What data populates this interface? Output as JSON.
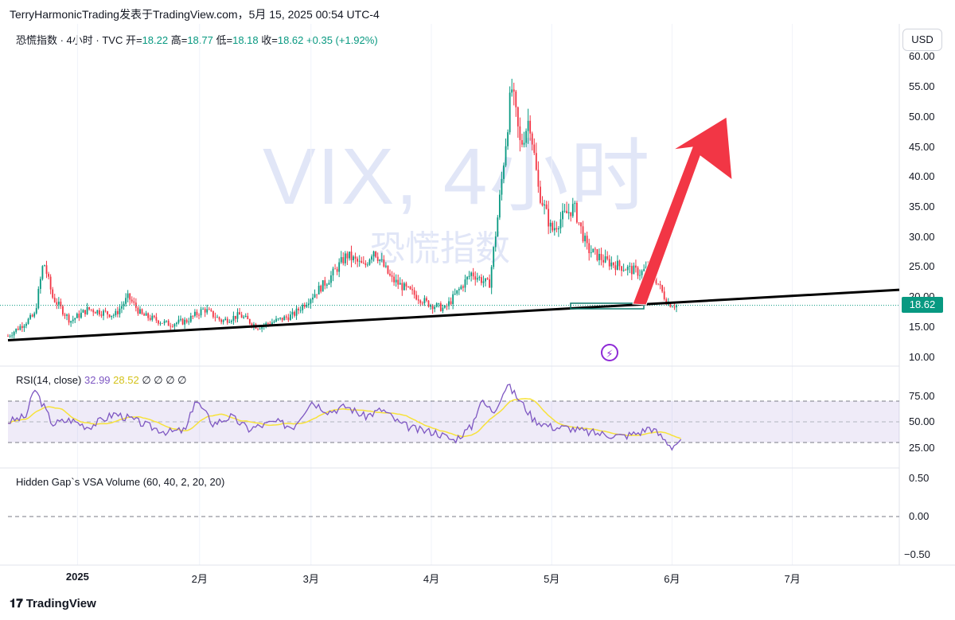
{
  "header": {
    "publisher_line": "TerryHarmonicTrading发表于TradingView.com，5月 15, 2025 00:54 UTC-4"
  },
  "legend": {
    "symbol": "恐慌指数 · 4小时 · TVC",
    "open_label": "开=",
    "open": "18.22",
    "high_label": "高=",
    "high": "18.77",
    "low_label": "低=",
    "low": "18.18",
    "close_label": "收=",
    "close": "18.62",
    "change": "+0.35 (+1.92%)"
  },
  "currency_button": "USD",
  "watermark": {
    "line1": "VIX, 4小时",
    "line2": "恐慌指数"
  },
  "price_axis": {
    "ticks": [
      "60.00",
      "55.00",
      "50.00",
      "45.00",
      "40.00",
      "35.00",
      "30.00",
      "25.00",
      "20.00",
      "15.00",
      "10.00"
    ],
    "last_price": "18.62"
  },
  "rsi": {
    "name": "RSI",
    "params": "(14, close)",
    "value": "32.99",
    "ma_value": "28.52",
    "extra": "∅ ∅ ∅ ∅",
    "ticks": [
      "75.00",
      "50.00",
      "25.00"
    ]
  },
  "vsa": {
    "label": "Hidden Gap`s VSA Volume (60, 40, 2, 20, 20)",
    "ticks": [
      "0.50",
      "0.00",
      "−0.50"
    ]
  },
  "time_axis": {
    "labels": [
      "2025",
      "2月",
      "3月",
      "4月",
      "5月",
      "6月",
      "7月"
    ]
  },
  "footer": {
    "brand": "TradingView"
  },
  "colors": {
    "up": "#089981",
    "down": "#f23645",
    "rsi_line": "#7e57c2",
    "rsi_ma": "#f7e23a",
    "arrow": "#f23645",
    "trendline": "#000000"
  },
  "chart_data": {
    "type": "candlestick",
    "interval": "4小时",
    "y_range": [
      8.5,
      61.5
    ],
    "x_months": [
      "2025",
      "2月",
      "3月",
      "4月",
      "5月",
      "6月",
      "7月"
    ],
    "key_levels": {
      "trendline_start": 12.8,
      "trendline_end": 21.2,
      "last_close": 18.62,
      "peak_high": 60.1
    },
    "approx_close_path": [
      [
        0.0,
        13.5
      ],
      [
        0.03,
        17
      ],
      [
        0.04,
        26
      ],
      [
        0.05,
        20
      ],
      [
        0.07,
        16
      ],
      [
        0.09,
        18
      ],
      [
        0.12,
        17
      ],
      [
        0.135,
        20
      ],
      [
        0.15,
        17
      ],
      [
        0.18,
        15.5
      ],
      [
        0.2,
        16
      ],
      [
        0.22,
        18
      ],
      [
        0.24,
        16
      ],
      [
        0.26,
        17
      ],
      [
        0.28,
        15
      ],
      [
        0.3,
        16
      ],
      [
        0.32,
        17
      ],
      [
        0.34,
        20
      ],
      [
        0.36,
        23
      ],
      [
        0.38,
        27
      ],
      [
        0.4,
        25
      ],
      [
        0.41,
        28
      ],
      [
        0.43,
        23
      ],
      [
        0.45,
        21
      ],
      [
        0.47,
        19
      ],
      [
        0.49,
        18
      ],
      [
        0.5,
        20
      ],
      [
        0.52,
        24
      ],
      [
        0.54,
        22
      ],
      [
        0.55,
        34
      ],
      [
        0.565,
        55
      ],
      [
        0.575,
        45
      ],
      [
        0.585,
        50
      ],
      [
        0.595,
        38
      ],
      [
        0.61,
        31
      ],
      [
        0.62,
        33
      ],
      [
        0.635,
        35
      ],
      [
        0.65,
        28
      ],
      [
        0.67,
        26
      ],
      [
        0.69,
        25
      ],
      [
        0.71,
        24
      ],
      [
        0.72,
        25
      ],
      [
        0.73,
        22
      ],
      [
        0.74,
        19
      ],
      [
        0.75,
        18.62
      ]
    ]
  },
  "rsi_data": {
    "range": [
      10,
      90
    ],
    "upper": 70,
    "middle": 50,
    "lower": 30,
    "approx_path": [
      [
        0.0,
        50
      ],
      [
        0.02,
        55
      ],
      [
        0.03,
        82
      ],
      [
        0.05,
        48
      ],
      [
        0.07,
        52
      ],
      [
        0.09,
        45
      ],
      [
        0.12,
        58
      ],
      [
        0.14,
        52
      ],
      [
        0.16,
        45
      ],
      [
        0.18,
        40
      ],
      [
        0.2,
        42
      ],
      [
        0.21,
        72
      ],
      [
        0.23,
        48
      ],
      [
        0.25,
        55
      ],
      [
        0.27,
        43
      ],
      [
        0.3,
        50
      ],
      [
        0.32,
        45
      ],
      [
        0.34,
        70
      ],
      [
        0.36,
        60
      ],
      [
        0.38,
        65
      ],
      [
        0.4,
        55
      ],
      [
        0.42,
        62
      ],
      [
        0.44,
        48
      ],
      [
        0.46,
        42
      ],
      [
        0.48,
        40
      ],
      [
        0.5,
        32
      ],
      [
        0.52,
        45
      ],
      [
        0.53,
        70
      ],
      [
        0.545,
        60
      ],
      [
        0.56,
        86
      ],
      [
        0.575,
        70
      ],
      [
        0.59,
        52
      ],
      [
        0.61,
        45
      ],
      [
        0.63,
        44
      ],
      [
        0.65,
        40
      ],
      [
        0.67,
        38
      ],
      [
        0.69,
        36
      ],
      [
        0.71,
        40
      ],
      [
        0.72,
        45
      ],
      [
        0.73,
        38
      ],
      [
        0.745,
        26
      ],
      [
        0.755,
        32.99
      ]
    ]
  }
}
